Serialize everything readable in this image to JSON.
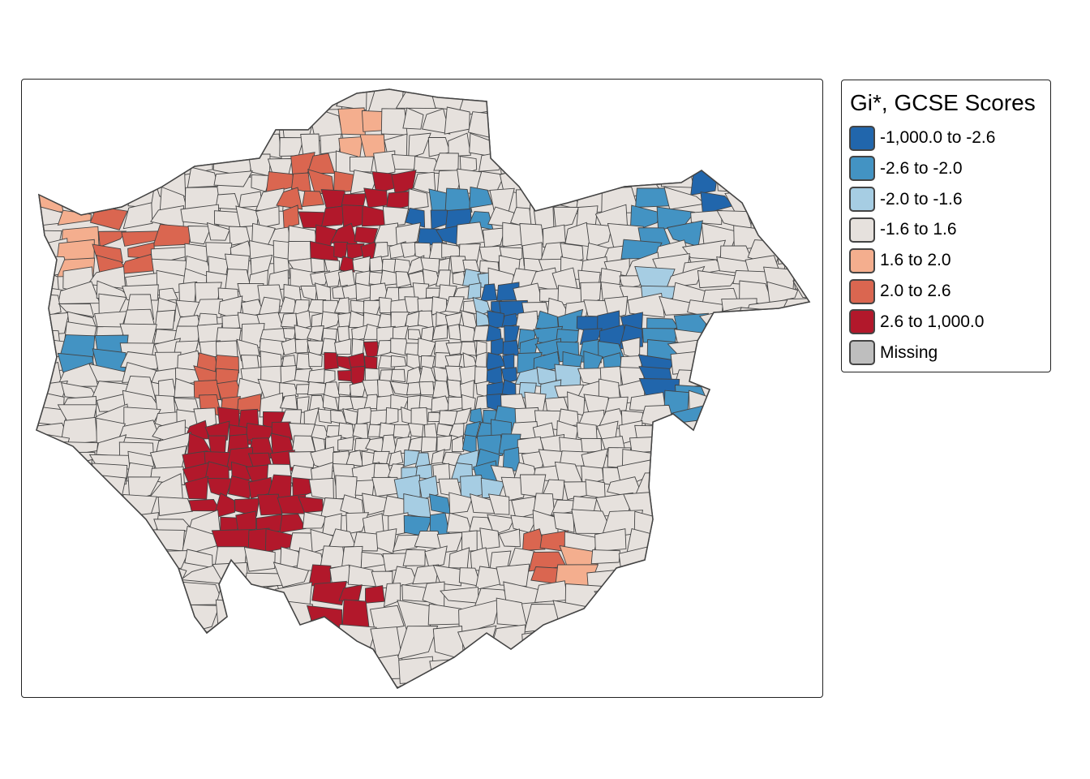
{
  "legend": {
    "title": "Gi*, GCSE Scores",
    "items": [
      {
        "label": "-1,000.0 to -2.6",
        "color": "#2166AC"
      },
      {
        "label": "-2.6 to -2.0",
        "color": "#4393C3"
      },
      {
        "label": "-2.0 to -1.6",
        "color": "#A6CDE3"
      },
      {
        "label": "-1.6 to 1.6",
        "color": "#E6E1DD"
      },
      {
        "label": "1.6 to 2.0",
        "color": "#F4AE8E"
      },
      {
        "label": "2.0 to 2.6",
        "color": "#DA6650"
      },
      {
        "label": "2.6 to 1,000.0",
        "color": "#B2182B"
      },
      {
        "label": "Missing",
        "color": "#BEBEBE"
      }
    ]
  },
  "map": {
    "border_color": "#444444"
  }
}
